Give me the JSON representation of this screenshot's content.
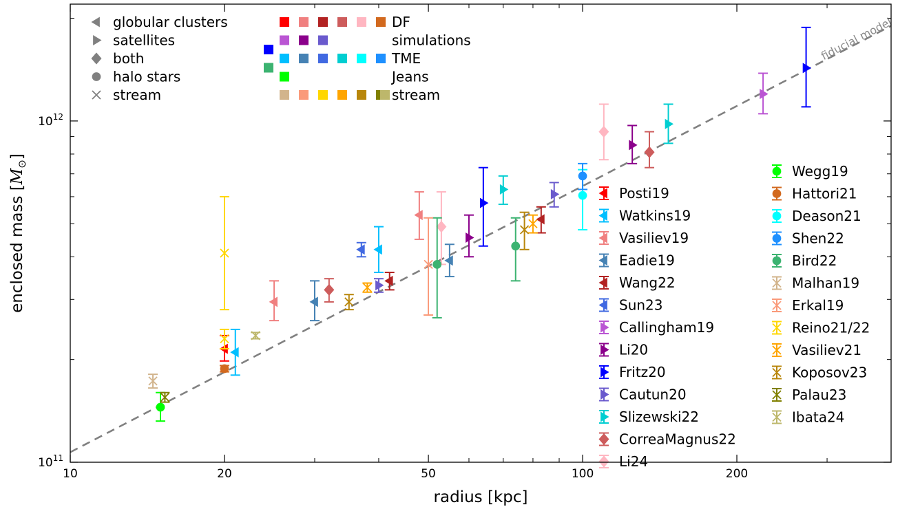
{
  "chart_data": {
    "type": "scatter",
    "title": "",
    "xlabel": "radius [kpc]",
    "ylabel_prefix": "enclosed mass [",
    "ylabel_math": "M",
    "ylabel_sub": "⊙",
    "ylabel_suffix": "]",
    "xscale": "log",
    "yscale": "log",
    "xlim": [
      10,
      400
    ],
    "ylim": [
      100000000000.0,
      2200000000000.0
    ],
    "x_ticks": [
      {
        "value": 10,
        "label": "10"
      },
      {
        "value": 20,
        "label": "20"
      },
      {
        "value": 50,
        "label": "50"
      },
      {
        "value": 100,
        "label": "100"
      },
      {
        "value": 200,
        "label": "200"
      }
    ],
    "y_ticks": [
      {
        "value": 100000000000.0,
        "base": "10",
        "exp": "11"
      },
      {
        "value": 1000000000000.0,
        "base": "10",
        "exp": "12"
      }
    ],
    "model_line": {
      "label": "fiducial model",
      "color": "#808080",
      "points": [
        [
          10,
          107000000000.0
        ],
        [
          400,
          1900000000000.0
        ]
      ]
    },
    "marker_legend": [
      {
        "marker": "left",
        "label": "globular clusters"
      },
      {
        "marker": "right",
        "label": "satellites"
      },
      {
        "marker": "diamond",
        "label": "both"
      },
      {
        "marker": "circle",
        "label": "halo stars"
      },
      {
        "marker": "x",
        "label": "stream"
      }
    ],
    "method_legend": [
      {
        "label": "DF",
        "colors": [
          "#ff0000",
          "#f08080",
          "#b22222",
          "#cd5c5c",
          "#ffb6c1",
          "#d2691e"
        ]
      },
      {
        "label": "simulations",
        "colors": [
          "#ba55d3",
          "#8b008b",
          "#6a5acd"
        ]
      },
      {
        "label": "TME",
        "colors": [
          "#0000ff",
          "#00bfff",
          "#4682b4",
          "#4169e1",
          "#00ced1",
          "#00ffff",
          "#1e90ff"
        ]
      },
      {
        "label": "Jeans",
        "colors": [
          "#3cb371",
          "#00ff00"
        ]
      },
      {
        "label": "stream",
        "colors": [
          "#d2b48c",
          "#fa9a7a",
          "#ffd700",
          "#ffa500",
          "#b8860b",
          "#808000",
          "#bdb76b"
        ]
      }
    ],
    "series": [
      {
        "name": "Posti19",
        "marker": "left",
        "color": "#ff0000",
        "points": [
          {
            "x": 20,
            "y": 215000000000.0,
            "lo": 198000000000.0,
            "hi": 235000000000.0
          }
        ]
      },
      {
        "name": "Watkins19",
        "marker": "left",
        "color": "#00bfff",
        "points": [
          {
            "x": 21,
            "y": 210000000000.0,
            "lo": 180000000000.0,
            "hi": 245000000000.0
          },
          {
            "x": 40,
            "y": 420000000000.0,
            "lo": 360000000000.0,
            "hi": 490000000000.0
          }
        ]
      },
      {
        "name": "Vasiliev19",
        "marker": "left",
        "color": "#f08080",
        "points": [
          {
            "x": 25,
            "y": 295000000000.0,
            "lo": 260000000000.0,
            "hi": 340000000000.0
          },
          {
            "x": 48,
            "y": 530000000000.0,
            "lo": 450000000000.0,
            "hi": 620000000000.0
          }
        ]
      },
      {
        "name": "Eadie19",
        "marker": "left",
        "color": "#4682b4",
        "points": [
          {
            "x": 30,
            "y": 295000000000.0,
            "lo": 260000000000.0,
            "hi": 340000000000.0
          },
          {
            "x": 55,
            "y": 390000000000.0,
            "lo": 350000000000.0,
            "hi": 435000000000.0
          }
        ]
      },
      {
        "name": "Wang22",
        "marker": "left",
        "color": "#b22222",
        "points": [
          {
            "x": 42,
            "y": 340000000000.0,
            "lo": 320000000000.0,
            "hi": 360000000000.0
          },
          {
            "x": 83,
            "y": 515000000000.0,
            "lo": 470000000000.0,
            "hi": 560000000000.0
          }
        ]
      },
      {
        "name": "Sun23",
        "marker": "left",
        "color": "#4169e1",
        "points": [
          {
            "x": 37,
            "y": 420000000000.0,
            "lo": 400000000000.0,
            "hi": 440000000000.0
          }
        ]
      },
      {
        "name": "Callingham19",
        "marker": "right",
        "color": "#ba55d3",
        "points": [
          {
            "x": 225,
            "y": 1200000000000.0,
            "lo": 1050000000000.0,
            "hi": 1380000000000.0
          }
        ]
      },
      {
        "name": "Li20",
        "marker": "right",
        "color": "#8b008b",
        "points": [
          {
            "x": 60,
            "y": 455000000000.0,
            "lo": 400000000000.0,
            "hi": 530000000000.0
          },
          {
            "x": 125,
            "y": 850000000000.0,
            "lo": 750000000000.0,
            "hi": 970000000000.0
          }
        ]
      },
      {
        "name": "Fritz20",
        "marker": "right",
        "color": "#0000ff",
        "points": [
          {
            "x": 64,
            "y": 575000000000.0,
            "lo": 430000000000.0,
            "hi": 730000000000.0
          },
          {
            "x": 273,
            "y": 1430000000000.0,
            "lo": 1100000000000.0,
            "hi": 1880000000000.0
          }
        ]
      },
      {
        "name": "Cautun20",
        "marker": "right",
        "color": "#6a5acd",
        "points": [
          {
            "x": 40,
            "y": 330000000000.0,
            "lo": 315000000000.0,
            "hi": 345000000000.0
          },
          {
            "x": 88,
            "y": 610000000000.0,
            "lo": 560000000000.0,
            "hi": 660000000000.0
          }
        ]
      },
      {
        "name": "Slizewski22",
        "marker": "right",
        "color": "#00ced1",
        "points": [
          {
            "x": 70,
            "y": 630000000000.0,
            "lo": 570000000000.0,
            "hi": 690000000000.0
          },
          {
            "x": 147,
            "y": 980000000000.0,
            "lo": 860000000000.0,
            "hi": 1120000000000.0
          }
        ]
      },
      {
        "name": "CorreaMagnus22",
        "marker": "diamond",
        "color": "#cd5c5c",
        "points": [
          {
            "x": 32,
            "y": 320000000000.0,
            "lo": 295000000000.0,
            "hi": 345000000000.0
          },
          {
            "x": 135,
            "y": 810000000000.0,
            "lo": 730000000000.0,
            "hi": 930000000000.0
          }
        ]
      },
      {
        "name": "Li24",
        "marker": "diamond",
        "color": "#ffb6c1",
        "points": [
          {
            "x": 53,
            "y": 490000000000.0,
            "lo": 380000000000.0,
            "hi": 620000000000.0
          },
          {
            "x": 110,
            "y": 930000000000.0,
            "lo": 770000000000.0,
            "hi": 1120000000000.0
          }
        ]
      },
      {
        "name": "Wegg19",
        "marker": "circle",
        "color": "#00ff00",
        "points": [
          {
            "x": 15,
            "y": 145000000000.0,
            "lo": 132000000000.0,
            "hi": 160000000000.0
          }
        ]
      },
      {
        "name": "Hattori21",
        "marker": "circle",
        "color": "#d2691e",
        "points": [
          {
            "x": 20,
            "y": 188000000000.0,
            "lo": 184000000000.0,
            "hi": 192000000000.0
          }
        ]
      },
      {
        "name": "Deason21",
        "marker": "circle",
        "color": "#00ffff",
        "points": [
          {
            "x": 100,
            "y": 605000000000.0,
            "lo": 480000000000.0,
            "hi": 720000000000.0
          }
        ]
      },
      {
        "name": "Shen22",
        "marker": "circle",
        "color": "#1e90ff",
        "points": [
          {
            "x": 100,
            "y": 690000000000.0,
            "lo": 630000000000.0,
            "hi": 750000000000.0
          }
        ]
      },
      {
        "name": "Bird22",
        "marker": "circle",
        "color": "#3cb371",
        "points": [
          {
            "x": 52,
            "y": 380000000000.0,
            "lo": 265000000000.0,
            "hi": 520000000000.0
          },
          {
            "x": 74,
            "y": 430000000000.0,
            "lo": 340000000000.0,
            "hi": 520000000000.0
          }
        ]
      },
      {
        "name": "Malhan19",
        "marker": "x",
        "color": "#d2b48c",
        "points": [
          {
            "x": 14.5,
            "y": 173000000000.0,
            "lo": 165000000000.0,
            "hi": 181000000000.0
          }
        ]
      },
      {
        "name": "Erkal19",
        "marker": "x",
        "color": "#fa9a7a",
        "points": [
          {
            "x": 50,
            "y": 380000000000.0,
            "lo": 270000000000.0,
            "hi": 520000000000.0
          }
        ]
      },
      {
        "name": "Reino21/22",
        "marker": "x",
        "color": "#ffd700",
        "points": [
          {
            "x": 20,
            "y": 410000000000.0,
            "lo": 280000000000.0,
            "hi": 600000000000.0
          },
          {
            "x": 20,
            "y": 230000000000.0,
            "lo": 215000000000.0,
            "hi": 245000000000.0
          }
        ]
      },
      {
        "name": "Vasiliev21",
        "marker": "x",
        "color": "#ffa500",
        "points": [
          {
            "x": 38,
            "y": 325000000000.0,
            "lo": 315000000000.0,
            "hi": 335000000000.0
          },
          {
            "x": 80,
            "y": 500000000000.0,
            "lo": 470000000000.0,
            "hi": 530000000000.0
          }
        ]
      },
      {
        "name": "Koposov23",
        "marker": "x",
        "color": "#b8860b",
        "points": [
          {
            "x": 35,
            "y": 295000000000.0,
            "lo": 280000000000.0,
            "hi": 310000000000.0
          },
          {
            "x": 77,
            "y": 480000000000.0,
            "lo": 420000000000.0,
            "hi": 540000000000.0
          }
        ]
      },
      {
        "name": "Palau23",
        "marker": "x",
        "color": "#808000",
        "points": [
          {
            "x": 15.3,
            "y": 155000000000.0,
            "lo": 150000000000.0,
            "hi": 160000000000.0
          }
        ]
      },
      {
        "name": "Ibata24",
        "marker": "x",
        "color": "#bdb76b",
        "points": [
          {
            "x": 23,
            "y": 235000000000.0,
            "lo": 230000000000.0,
            "hi": 240000000000.0
          }
        ]
      }
    ]
  }
}
